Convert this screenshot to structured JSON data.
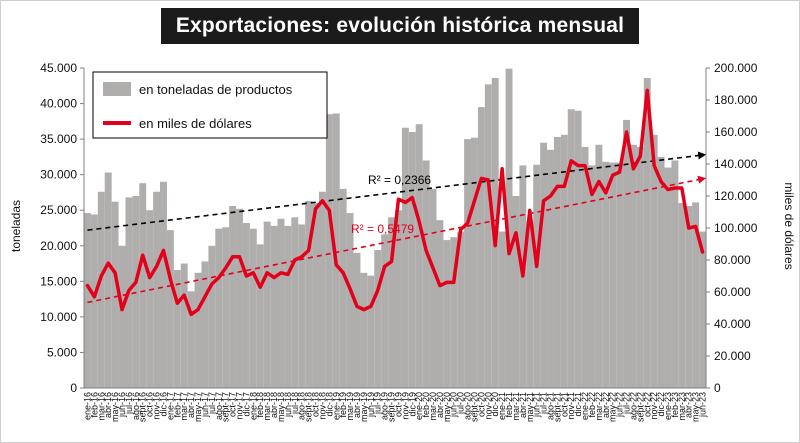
{
  "chart_data": {
    "type": "bar",
    "title": "Exportaciones: evolución histórica mensual",
    "ylabel_left": "toneladas",
    "ylabel_right": "miles de dólares",
    "ylim_left": [
      0,
      45000
    ],
    "ylim_right": [
      0,
      200000
    ],
    "yticks_left": [
      "0",
      "5.000",
      "10.000",
      "15.000",
      "20.000",
      "25.000",
      "30.000",
      "35.000",
      "40.000",
      "45.000"
    ],
    "yticks_right": [
      "0",
      "20.000",
      "40.000",
      "60.000",
      "80.000",
      "100.000",
      "120.000",
      "140.000",
      "160.000",
      "180.000",
      "200.000"
    ],
    "grid": false,
    "legend_placement": "top-left",
    "categories": [
      "ene-16",
      "feb-16",
      "mar-16",
      "abr-16",
      "may-16",
      "jun-16",
      "jul-16",
      "ago-16",
      "sept-16",
      "oct-16",
      "nov-16",
      "dic-16",
      "ene-17",
      "feb-17",
      "mar-17",
      "abr-17",
      "may-17",
      "jun-17",
      "jul-17",
      "ago-17",
      "sept-17",
      "oct-17",
      "nov-17",
      "dic-17",
      "ene-18",
      "feb-18",
      "mar-18",
      "abr-18",
      "may-18",
      "jun-18",
      "jul-18",
      "ago-18",
      "sept-18",
      "oct-18",
      "nov-18",
      "dic-18",
      "ene-19",
      "feb-19",
      "mar-19",
      "abr-19",
      "may-19",
      "jun-19",
      "jul-19",
      "ago-19",
      "sept-19",
      "oct-19",
      "nov-19",
      "dic-19",
      "ene-20",
      "feb-20",
      "mar-20",
      "abr-20",
      "may-20",
      "jun-20",
      "jul-20",
      "ago-20",
      "sept-20",
      "oct-20",
      "nov-20",
      "dic-20",
      "ene-21",
      "feb-21",
      "mar-21",
      "abr-21",
      "may-21",
      "jun-21",
      "jul-21",
      "ago-21",
      "sept-21",
      "oct-21",
      "nov-21",
      "dic-21",
      "ene-22",
      "feb-22",
      "mar-22",
      "abr-22",
      "may-22",
      "jun-22",
      "jul-22",
      "ago-22",
      "sept-22",
      "oct-22",
      "nov-22",
      "dic-22",
      "ene-23",
      "feb-23",
      "mar-23",
      "abr-23",
      "may-23",
      "jun-23"
    ],
    "series": [
      {
        "name": "en toneladas de productos",
        "type": "bar",
        "axis": "left",
        "color": "#b0adad",
        "values": [
          24600,
          24400,
          27600,
          30300,
          26200,
          20000,
          26800,
          27000,
          28800,
          25000,
          27600,
          29000,
          22200,
          16600,
          17500,
          13600,
          16200,
          17800,
          20000,
          22400,
          22600,
          25600,
          25200,
          23200,
          22400,
          20200,
          23400,
          22800,
          23800,
          22800,
          24000,
          23000,
          26300,
          26000,
          27600,
          38500,
          38600,
          28000,
          24600,
          19000,
          16200,
          15800,
          19400,
          21600,
          24000,
          25000,
          36600,
          36000,
          37100,
          32000,
          28000,
          23600,
          20800,
          21200,
          22000,
          35000,
          35200,
          39500,
          42700,
          43600,
          22000,
          44900,
          27000,
          31300,
          23400,
          31400,
          34500,
          33500,
          35300,
          35600,
          39200,
          39000,
          33900,
          31300,
          34200,
          31800,
          31700,
          31700,
          37700,
          34200,
          33900,
          43600,
          35600,
          32500,
          31000,
          32000,
          26000,
          25600,
          26100,
          22000
        ]
      },
      {
        "name": "en miles de dólares",
        "type": "line",
        "axis": "right",
        "color": "#e3001b",
        "values": [
          64000,
          57000,
          70000,
          78000,
          72000,
          49000,
          61000,
          66000,
          83000,
          69000,
          76000,
          86000,
          68000,
          53000,
          58000,
          46000,
          49000,
          57000,
          65000,
          69000,
          75000,
          82000,
          82000,
          70000,
          72000,
          63000,
          72000,
          69000,
          72000,
          71000,
          80000,
          82000,
          86000,
          112000,
          117000,
          111000,
          77000,
          72000,
          62000,
          51000,
          49000,
          51000,
          61000,
          76000,
          79000,
          118000,
          116000,
          119000,
          104000,
          86000,
          75000,
          64000,
          66000,
          66000,
          99000,
          103000,
          117000,
          131000,
          130000,
          89000,
          137000,
          84000,
          97000,
          70000,
          111000,
          76000,
          117000,
          120000,
          126000,
          126000,
          142000,
          139000,
          139000,
          121000,
          129000,
          122000,
          133000,
          135000,
          160000,
          137000,
          145000,
          186000,
          139000,
          129000,
          124000,
          125000,
          125000,
          100000,
          101000,
          85000
        ]
      }
    ],
    "trendlines": [
      {
        "series": "en toneladas de productos",
        "color": "#000000",
        "r2_label": "R² = 0,2366",
        "start_value": 22200,
        "end_value": 32800
      },
      {
        "series": "en miles de dólares",
        "color": "#e3001b",
        "r2_label": "R² = 0,5479",
        "start_value": 53500,
        "end_value": 131000
      }
    ]
  }
}
